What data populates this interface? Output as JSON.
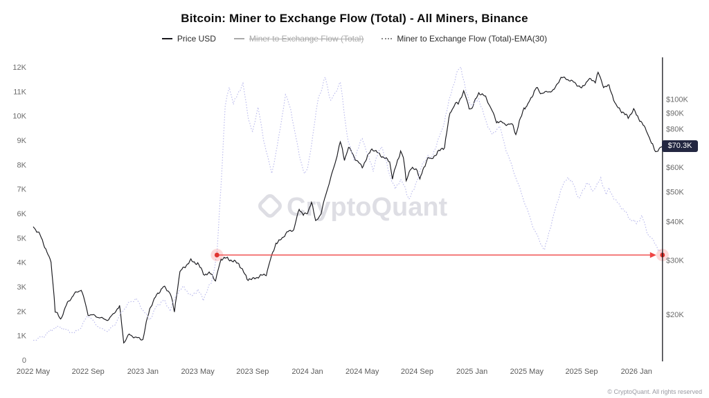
{
  "title": "Bitcoin: Miner to Exchange Flow (Total) - All Miners, Binance",
  "watermark": "CryptoQuant",
  "footer": "© CryptoQuant. All rights reserved",
  "price_badge": {
    "label": "$70.3K",
    "bg": "#232741",
    "text_color": "#ffffff",
    "value_k": 70.3
  },
  "legend": {
    "items": [
      {
        "label": "Price USD",
        "color": "#17171c",
        "style": "solid",
        "disabled": false
      },
      {
        "label": "Miner to Exchange Flow (Total)",
        "color": "#a9a9a9",
        "style": "solid",
        "disabled": true
      },
      {
        "label": "Miner to Exchange Flow (Total)-EMA(30)",
        "color": "#8a8a8a",
        "style": "dotted",
        "disabled": false
      }
    ]
  },
  "chart_data": {
    "type": "line",
    "title": "Bitcoin: Miner to Exchange Flow (Total) - All Miners, Binance",
    "x_unit": "months since 2022-05",
    "x_range": [
      0,
      45.9
    ],
    "x_ticks": {
      "values": [
        0,
        4,
        8,
        12,
        16,
        20,
        24,
        28,
        32,
        36,
        40,
        44
      ],
      "labels": [
        "2022 May",
        "2022 Sep",
        "2023 Jan",
        "2023 May",
        "2023 Sep",
        "2024 Jan",
        "2024 May",
        "2024 Sep",
        "2025 Jan",
        "2025 May",
        "2025 Sep",
        "2026 Jan"
      ]
    },
    "left_axis": {
      "series": "Miner to Exchange Flow (Total)-EMA(30)",
      "scale": "linear",
      "range": [
        0,
        12.4
      ],
      "unit": "K BTC",
      "tick_values": [
        0,
        1,
        2,
        3,
        4,
        5,
        6,
        7,
        8,
        9,
        10,
        11,
        12
      ],
      "tick_labels": [
        "0",
        "1K",
        "2K",
        "3K",
        "4K",
        "5K",
        "6K",
        "7K",
        "8K",
        "9K",
        "10K",
        "11K",
        "12K"
      ]
    },
    "right_axis": {
      "series": "Price USD",
      "scale": "log",
      "range": [
        15.5,
        135
      ],
      "unit": "$K",
      "tick_values": [
        20,
        30,
        40,
        50,
        60,
        80,
        90,
        100
      ],
      "tick_labels": [
        "$20K",
        "$30K",
        "$40K",
        "$50K",
        "$60K",
        "$80K",
        "$90K",
        "$100K"
      ]
    },
    "series": [
      {
        "id": "price-usd-line",
        "name": "Price USD",
        "axis": "right",
        "color": "#17171c",
        "dash": "solid",
        "points": [
          [
            0,
            38.5
          ],
          [
            0.5,
            36.2
          ],
          [
            1,
            31.8
          ],
          [
            1.3,
            29.5
          ],
          [
            1.6,
            20.5
          ],
          [
            2,
            19.3
          ],
          [
            2.5,
            21.8
          ],
          [
            3,
            23.3
          ],
          [
            3.5,
            24.1
          ],
          [
            4,
            20
          ],
          [
            4.5,
            19.8
          ],
          [
            5,
            19.4
          ],
          [
            5.5,
            19.2
          ],
          [
            6,
            20.5
          ],
          [
            6.3,
            21.2
          ],
          [
            6.6,
            16.2
          ],
          [
            7,
            17.2
          ],
          [
            7.5,
            16.8
          ],
          [
            8,
            16.6
          ],
          [
            8.5,
            20.9
          ],
          [
            9,
            23.1
          ],
          [
            9.5,
            24.6
          ],
          [
            10,
            23.5
          ],
          [
            10.3,
            20.3
          ],
          [
            10.7,
            27.5
          ],
          [
            11,
            28.4
          ],
          [
            11.5,
            29.9
          ],
          [
            12,
            29.2
          ],
          [
            12.5,
            26.9
          ],
          [
            13,
            27.2
          ],
          [
            13.3,
            25.6
          ],
          [
            13.7,
            30.3
          ],
          [
            14,
            30.5
          ],
          [
            14.5,
            29.9
          ],
          [
            15,
            29.2
          ],
          [
            15.6,
            26.1
          ],
          [
            16,
            26
          ],
          [
            16.5,
            26.6
          ],
          [
            17,
            27
          ],
          [
            17.7,
            34
          ],
          [
            18,
            34.7
          ],
          [
            18.5,
            36.9
          ],
          [
            19,
            37.7
          ],
          [
            19.4,
            43.8
          ],
          [
            19.7,
            42.4
          ],
          [
            20,
            42.3
          ],
          [
            20.3,
            46.6
          ],
          [
            20.6,
            39.9
          ],
          [
            21,
            42.6
          ],
          [
            21.5,
            51.8
          ],
          [
            22,
            61.2
          ],
          [
            22.4,
            72.8
          ],
          [
            22.7,
            63.4
          ],
          [
            23,
            69.8
          ],
          [
            23.5,
            63.9
          ],
          [
            24,
            60.1
          ],
          [
            24.7,
            69
          ],
          [
            25,
            67.5
          ],
          [
            25.5,
            64.9
          ],
          [
            26,
            62.7
          ],
          [
            26.2,
            55.1
          ],
          [
            26.8,
            67.8
          ],
          [
            27,
            64.6
          ],
          [
            27.2,
            54.3
          ],
          [
            27.5,
            59.3
          ],
          [
            28,
            59.1
          ],
          [
            28.2,
            54.8
          ],
          [
            28.8,
            64.8
          ],
          [
            29,
            63.3
          ],
          [
            29.5,
            67.2
          ],
          [
            30,
            69.9
          ],
          [
            30.4,
            89.9
          ],
          [
            30.8,
            97
          ],
          [
            31,
            96.4
          ],
          [
            31.4,
            106.1
          ],
          [
            31.8,
            93.2
          ],
          [
            32,
            93.4
          ],
          [
            32.5,
            104.8
          ],
          [
            33,
            101.6
          ],
          [
            33.8,
            84.3
          ],
          [
            34,
            84.4
          ],
          [
            34.5,
            82.8
          ],
          [
            35,
            82.5
          ],
          [
            35.2,
            76.5
          ],
          [
            35.8,
            93.8
          ],
          [
            36,
            94.2
          ],
          [
            36.7,
            108.9
          ],
          [
            37,
            104.6
          ],
          [
            37.5,
            105.2
          ],
          [
            38,
            107.1
          ],
          [
            38.5,
            117.6
          ],
          [
            39,
            115.8
          ],
          [
            39.5,
            112.9
          ],
          [
            40,
            108.2
          ],
          [
            40.5,
            115.9
          ],
          [
            41,
            114.1
          ],
          [
            41.2,
            121.8
          ],
          [
            41.6,
            109.8
          ],
          [
            42,
            110.1
          ],
          [
            42.5,
            95.2
          ],
          [
            43,
            90.6
          ],
          [
            43.4,
            87.1
          ],
          [
            43.8,
            92.3
          ],
          [
            44,
            88.9
          ],
          [
            44.4,
            83.5
          ],
          [
            44.8,
            77.9
          ],
          [
            45.1,
            71.8
          ],
          [
            45.4,
            67.4
          ],
          [
            45.9,
            70.3
          ]
        ]
      },
      {
        "id": "flow-ema-line",
        "name": "Miner to Exchange Flow (Total)-EMA(30)",
        "axis": "left",
        "color": "#b9b9ec",
        "dash": "dotted",
        "points": [
          [
            0,
            0.8
          ],
          [
            0.7,
            0.95
          ],
          [
            1.5,
            1.3
          ],
          [
            2,
            1.35
          ],
          [
            2.5,
            1.2
          ],
          [
            3,
            1.1
          ],
          [
            3.5,
            1.35
          ],
          [
            4,
            1.85
          ],
          [
            4.5,
            1.5
          ],
          [
            5,
            1.25
          ],
          [
            5.5,
            1.2
          ],
          [
            6,
            1.5
          ],
          [
            6.5,
            2
          ],
          [
            7,
            2.35
          ],
          [
            7.5,
            2.5
          ],
          [
            8,
            2.05
          ],
          [
            8.5,
            1.65
          ],
          [
            9,
            2.2
          ],
          [
            9.5,
            2.45
          ],
          [
            10,
            2.05
          ],
          [
            10.5,
            2.75
          ],
          [
            11,
            3
          ],
          [
            11.5,
            2.6
          ],
          [
            12,
            2.85
          ],
          [
            12.4,
            2.5
          ],
          [
            13,
            3.2
          ],
          [
            13.4,
            4.3
          ],
          [
            13.8,
            8.2
          ],
          [
            14,
            10.4
          ],
          [
            14.3,
            11.2
          ],
          [
            14.6,
            10.5
          ],
          [
            15,
            11
          ],
          [
            15.3,
            11.3
          ],
          [
            15.7,
            9.9
          ],
          [
            16,
            9.3
          ],
          [
            16.4,
            10.4
          ],
          [
            16.8,
            9
          ],
          [
            17,
            8.6
          ],
          [
            17.4,
            7.6
          ],
          [
            17.8,
            8.8
          ],
          [
            18,
            9.4
          ],
          [
            18.4,
            10.9
          ],
          [
            18.8,
            10.2
          ],
          [
            19,
            9.6
          ],
          [
            19.4,
            8.4
          ],
          [
            19.8,
            7.6
          ],
          [
            20,
            7.8
          ],
          [
            20.4,
            9.2
          ],
          [
            20.8,
            10.8
          ],
          [
            21,
            11
          ],
          [
            21.3,
            11.6
          ],
          [
            21.7,
            10.6
          ],
          [
            22,
            10.9
          ],
          [
            22.4,
            11.4
          ],
          [
            22.8,
            9.6
          ],
          [
            23,
            8.9
          ],
          [
            23.4,
            8.2
          ],
          [
            23.8,
            8.8
          ],
          [
            24,
            9.1
          ],
          [
            24.4,
            8.4
          ],
          [
            24.8,
            7.8
          ],
          [
            25,
            8.2
          ],
          [
            25.4,
            8.8
          ],
          [
            25.8,
            8
          ],
          [
            26,
            7.6
          ],
          [
            26.4,
            7
          ],
          [
            26.8,
            7.4
          ],
          [
            27,
            7.2
          ],
          [
            27.4,
            6.6
          ],
          [
            27.8,
            7
          ],
          [
            28,
            7.4
          ],
          [
            28.4,
            8
          ],
          [
            28.8,
            8.4
          ],
          [
            29,
            8.2
          ],
          [
            29.4,
            8.8
          ],
          [
            29.8,
            9.4
          ],
          [
            30,
            9.8
          ],
          [
            30.5,
            11
          ],
          [
            31,
            11.9
          ],
          [
            31.2,
            12
          ],
          [
            31.6,
            10.9
          ],
          [
            32,
            10.4
          ],
          [
            32.5,
            10.7
          ],
          [
            33,
            9.8
          ],
          [
            33.5,
            9.2
          ],
          [
            34,
            9.6
          ],
          [
            34.5,
            8.6
          ],
          [
            35,
            7.8
          ],
          [
            35.5,
            7
          ],
          [
            36,
            6.2
          ],
          [
            36.5,
            5.4
          ],
          [
            37,
            4.8
          ],
          [
            37.3,
            4.5
          ],
          [
            37.7,
            5.4
          ],
          [
            38,
            6
          ],
          [
            38.5,
            7
          ],
          [
            39,
            7.5
          ],
          [
            39.4,
            7.2
          ],
          [
            39.8,
            6.6
          ],
          [
            40,
            6.8
          ],
          [
            40.4,
            7.3
          ],
          [
            40.8,
            6.9
          ],
          [
            41,
            7.1
          ],
          [
            41.4,
            7.4
          ],
          [
            41.8,
            6.8
          ],
          [
            42,
            7
          ],
          [
            42.5,
            6.5
          ],
          [
            43,
            6.2
          ],
          [
            43.5,
            5.8
          ],
          [
            44,
            5.6
          ],
          [
            44.4,
            5.9
          ],
          [
            44.8,
            5.2
          ],
          [
            45.2,
            4.9
          ],
          [
            45.9,
            4.3
          ]
        ]
      }
    ],
    "annotation": {
      "type": "horizontal-arrow",
      "axis": "left",
      "value": 4.3,
      "from_x": 13.4,
      "to_x": 45.9,
      "color": "#ef4444",
      "dot_color": "#e0342f"
    },
    "current_time_x": 45.9,
    "current_price_k": 70.3
  }
}
